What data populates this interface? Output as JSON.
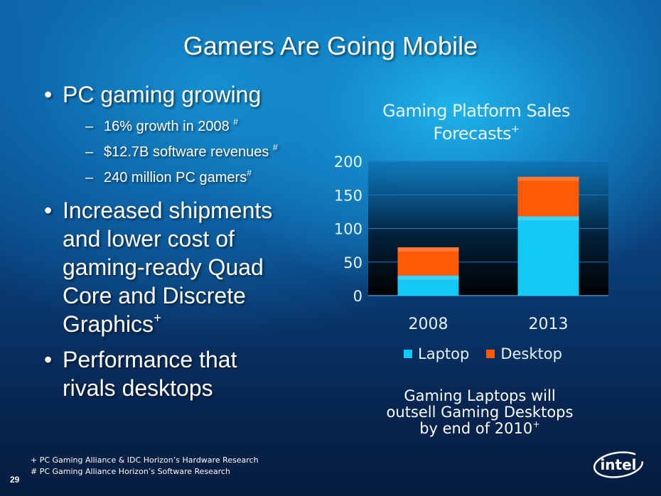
{
  "slide": {
    "title": "Gamers Are Going Mobile",
    "number": "29"
  },
  "bullets": [
    {
      "text": "PC gaming growing",
      "sub": [
        {
          "text": "16% growth in 2008",
          "mark": "#"
        },
        {
          "text": "$12.7B software revenues",
          "mark": "#"
        },
        {
          "text": "240 million PC gamers",
          "mark": "#"
        }
      ]
    },
    {
      "lines": [
        "Increased shipments",
        "and lower cost of",
        "gaming-ready Quad",
        "Core and Discrete",
        "Graphics"
      ],
      "mark": "+"
    },
    {
      "lines": [
        "Performance that",
        "rivals desktops"
      ]
    }
  ],
  "callout": {
    "lines": [
      "Gaming Laptops will",
      "outsell Gaming Desktops",
      "by end of 2010"
    ],
    "mark": "+"
  },
  "footnotes": [
    "+ PC Gaming Alliance & IDC Horizon’s Hardware Research",
    "# PC Gaming Alliance Horizon’s Software Research"
  ],
  "logo": {
    "text": "intel",
    "icon": "intel-logo-icon"
  },
  "colors": {
    "laptop": "#14c8f5",
    "desktop": "#ff5a08",
    "text": "#ffffff"
  },
  "chart_data": {
    "type": "bar",
    "stacked": true,
    "title": "Gaming Platform Sales Forecasts",
    "title_mark": "+",
    "categories": [
      "2008",
      "2013"
    ],
    "series": [
      {
        "name": "Laptop",
        "values": [
          30,
          118
        ]
      },
      {
        "name": "Desktop",
        "values": [
          42,
          59
        ]
      }
    ],
    "yticks": [
      0,
      50,
      100,
      150,
      200
    ],
    "ylim": [
      0,
      200
    ],
    "xlabel": "",
    "ylabel": "",
    "grid": true,
    "legend": "bottom"
  }
}
